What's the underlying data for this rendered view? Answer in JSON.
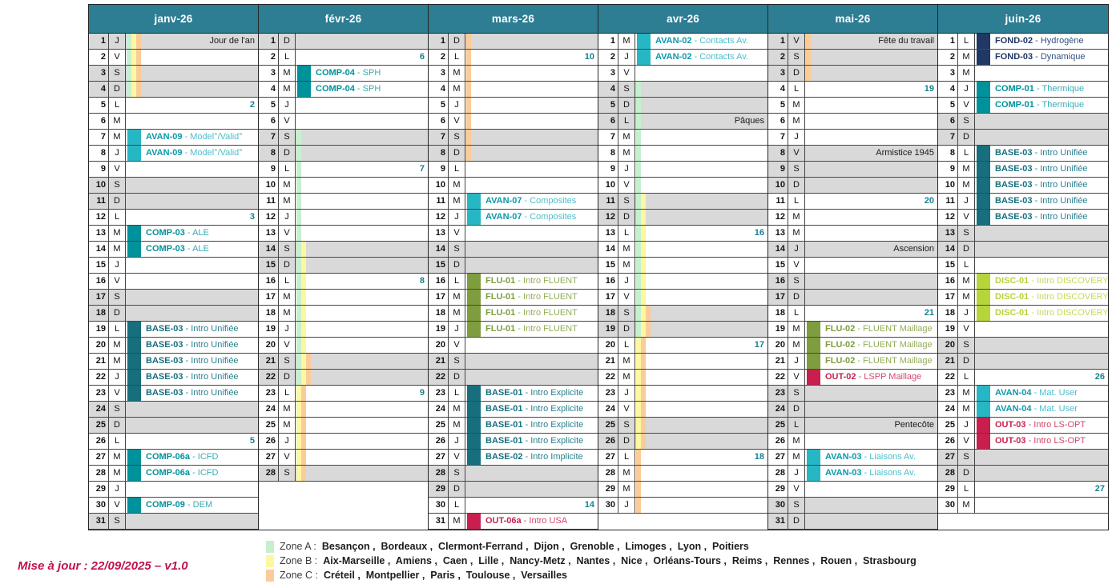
{
  "footer_note": "Mise à jour : 22/09/2025 – v1.0",
  "colors": {
    "header_bg": "#2d7d93",
    "weekend_bg": "#d9d9d9",
    "week_number": "#17808f",
    "update_note": "#c0124d",
    "zoneA": "#c6efce",
    "zoneB": "#fdf7a1",
    "zoneC": "#fbcb99"
  },
  "categories": {
    "avan": {
      "block": "#27b6c4",
      "code": "#0d9aa9",
      "desc": "#4cbecb"
    },
    "comp": {
      "block": "#00929b",
      "code": "#00929b",
      "desc": "#3aabb3"
    },
    "base": {
      "block": "#176f7e",
      "code": "#176f7e",
      "desc": "#27808e"
    },
    "flu": {
      "block": "#7e9d3e",
      "code": "#7e9d3e",
      "desc": "#94ad58"
    },
    "disc": {
      "block": "#b6d43c",
      "code": "#b6d43c",
      "desc": "#c3db5a"
    },
    "out": {
      "block": "#c91f4e",
      "code": "#c91f4e",
      "desc": "#d4476c"
    },
    "fond": {
      "block": "#1f3864",
      "code": "#1f3864",
      "desc": "#32517f"
    }
  },
  "months": [
    {
      "name": "janv-26",
      "letters": "JVSDLMMJVSDLMMJVSDLMMJVSDLMMJVS",
      "holidays": {
        "1": "Jour de l'an"
      },
      "weeks": {
        "5": "2",
        "12": "3",
        "26": "5"
      },
      "stripes": [
        {
          "zone": "A",
          "from": 1,
          "to": 4
        },
        {
          "zone": "B",
          "from": 1,
          "to": 4
        },
        {
          "zone": "C",
          "from": 1,
          "to": 4
        }
      ],
      "events": [
        {
          "days": [
            7,
            8
          ],
          "code": "AVAN-09",
          "label": "Model°/Valid°",
          "cat": "avan"
        },
        {
          "days": [
            13,
            14
          ],
          "code": "COMP-03",
          "label": "ALE",
          "cat": "comp"
        },
        {
          "days": [
            19,
            20,
            21,
            22,
            23
          ],
          "code": "BASE-03",
          "label": "Intro Unifiée",
          "cat": "base"
        },
        {
          "days": [
            27,
            28
          ],
          "code": "COMP-06a",
          "label": "ICFD",
          "cat": "comp"
        },
        {
          "days": [
            30
          ],
          "code": "COMP-09",
          "label": "DEM",
          "cat": "comp"
        }
      ]
    },
    {
      "name": "févr-26",
      "letters": "DLMMJVSDLMMJVSDLMMJVSDLMMJVS",
      "holidays": {},
      "weeks": {
        "2": "6",
        "9": "7",
        "16": "8",
        "23": "9"
      },
      "stripes": [
        {
          "zone": "A",
          "from": 7,
          "to": 22
        },
        {
          "zone": "B",
          "from": 14,
          "to": 28
        },
        {
          "zone": "C",
          "from": 21,
          "to": 28
        }
      ],
      "events": [
        {
          "days": [
            3,
            4
          ],
          "code": "COMP-04",
          "label": "SPH",
          "cat": "comp"
        }
      ]
    },
    {
      "name": "mars-26",
      "letters": "DLMMJVSDLMMJVSDLMMJVSDLMMJVSDLM",
      "holidays": {},
      "weeks": {
        "2": "10",
        "30": "14"
      },
      "stripes": [
        {
          "zone": "C",
          "from": 1,
          "to": 8
        }
      ],
      "events": [
        {
          "days": [
            11,
            12
          ],
          "code": "AVAN-07",
          "label": "Composites",
          "cat": "avan"
        },
        {
          "days": [
            16,
            17,
            18,
            19
          ],
          "code": "FLU-01",
          "label": "Intro FLUENT",
          "cat": "flu"
        },
        {
          "days": [
            23,
            24,
            25,
            26
          ],
          "code": "BASE-01",
          "label": "Intro Explicite",
          "cat": "base"
        },
        {
          "days": [
            27
          ],
          "code": "BASE-02",
          "label": "Intro Implicite",
          "cat": "base"
        },
        {
          "days": [
            31
          ],
          "code": "OUT-06a",
          "label": "Intro USA",
          "cat": "out"
        }
      ]
    },
    {
      "name": "avr-26",
      "letters": "MJVSDLMMJVSDLMMJVSDLMMJVSDLMMJ",
      "holidays": {
        "6": "Pâques"
      },
      "weeks": {
        "13": "16",
        "20": "17",
        "27": "18"
      },
      "stripes": [
        {
          "zone": "A",
          "from": 4,
          "to": 19
        },
        {
          "zone": "B",
          "from": 11,
          "to": 26
        },
        {
          "zone": "C",
          "from": 18,
          "to": 30
        }
      ],
      "events": [
        {
          "days": [
            1,
            2
          ],
          "code": "AVAN-02",
          "label": "Contacts Av.",
          "cat": "avan"
        }
      ]
    },
    {
      "name": "mai-26",
      "letters": "VSDLMMJVSDLMMJVSDLMMJVSDLMMJVSD",
      "holidays": {
        "1": "Fête du travail",
        "8": "Armistice 1945",
        "14": "Ascension",
        "25": "Pentecôte"
      },
      "weeks": {
        "4": "19",
        "11": "20",
        "18": "21"
      },
      "stripes": [
        {
          "zone": "C",
          "from": 1,
          "to": 3
        }
      ],
      "events": [
        {
          "days": [
            19,
            20,
            21
          ],
          "code": "FLU-02",
          "label": "FLUENT Maillage",
          "cat": "flu"
        },
        {
          "days": [
            22
          ],
          "code": "OUT-02",
          "label": "LSPP Maillage",
          "cat": "out"
        },
        {
          "days": [
            27,
            28
          ],
          "code": "AVAN-03",
          "label": "Liaisons Av.",
          "cat": "avan"
        }
      ]
    },
    {
      "name": "juin-26",
      "letters": "LMMJVSDLMMJVSDLMMJVSDLMMJVSDLM",
      "holidays": {},
      "weeks": {
        "22": "26",
        "29": "27"
      },
      "stripes": [],
      "events": [
        {
          "days": [
            1
          ],
          "code": "FOND-02",
          "label": "Hydrogène",
          "cat": "fond"
        },
        {
          "days": [
            2
          ],
          "code": "FOND-03",
          "label": "Dynamique",
          "cat": "fond"
        },
        {
          "days": [
            4,
            5
          ],
          "code": "COMP-01",
          "label": "Thermique",
          "cat": "comp"
        },
        {
          "days": [
            8,
            9,
            10,
            11,
            12
          ],
          "code": "BASE-03",
          "label": "Intro Unifiée",
          "cat": "base"
        },
        {
          "days": [
            16,
            17,
            18
          ],
          "code": "DISC-01",
          "label": "Intro DISCOVERY",
          "cat": "disc"
        },
        {
          "days": [
            23,
            24
          ],
          "code": "AVAN-04",
          "label": "Mat. User",
          "cat": "avan"
        },
        {
          "days": [
            25,
            26
          ],
          "code": "OUT-03",
          "label": "Intro LS-OPT",
          "cat": "out"
        }
      ]
    }
  ],
  "legend": [
    {
      "zone": "Zone A :",
      "zone_key": "zoneA",
      "cities": [
        "Besançon",
        "Bordeaux",
        "Clermont-Ferrand",
        "Dijon",
        "Grenoble",
        "Limoges",
        "Lyon",
        "Poitiers"
      ]
    },
    {
      "zone": "Zone B :",
      "zone_key": "zoneB",
      "cities": [
        "Aix-Marseille",
        "Amiens",
        "Caen",
        "Lille",
        "Nancy-Metz",
        "Nantes",
        "Nice",
        "Orléans-Tours",
        "Reims",
        "Rennes",
        "Rouen",
        "Strasbourg"
      ]
    },
    {
      "zone": "Zone C :",
      "zone_key": "zoneC",
      "cities": [
        "Créteil",
        "Montpellier",
        "Paris",
        "Toulouse",
        "Versailles"
      ]
    }
  ]
}
